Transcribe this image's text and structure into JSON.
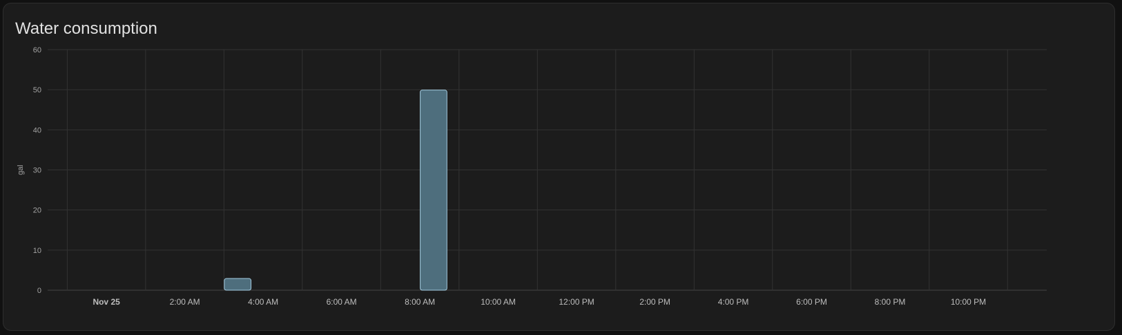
{
  "card": {
    "title": "Water consumption"
  },
  "chart_data": {
    "type": "bar",
    "title": "Water consumption",
    "ylabel": "gal",
    "xlabel": "",
    "ylim": [
      0,
      60
    ],
    "yticks": [
      0,
      10,
      20,
      30,
      40,
      50,
      60
    ],
    "x_range_hours": [
      -1.5,
      24
    ],
    "x_ticks": [
      {
        "hour": 0,
        "label": "Nov 25",
        "bold": true
      },
      {
        "hour": 2,
        "label": "2:00 AM"
      },
      {
        "hour": 4,
        "label": "4:00 AM"
      },
      {
        "hour": 6,
        "label": "6:00 AM"
      },
      {
        "hour": 8,
        "label": "8:00 AM"
      },
      {
        "hour": 10,
        "label": "10:00 AM"
      },
      {
        "hour": 12,
        "label": "12:00 PM"
      },
      {
        "hour": 14,
        "label": "2:00 PM"
      },
      {
        "hour": 16,
        "label": "4:00 PM"
      },
      {
        "hour": 18,
        "label": "6:00 PM"
      },
      {
        "hour": 20,
        "label": "8:00 PM"
      },
      {
        "hour": 22,
        "label": "10:00 PM"
      }
    ],
    "x_gridlines_hours": [
      -1,
      1,
      3,
      5,
      7,
      9,
      11,
      13,
      15,
      17,
      19,
      21,
      23
    ],
    "categories": [
      "3:00 AM",
      "8:00 AM"
    ],
    "bar_start_hours": [
      3,
      8
    ],
    "bar_end_hours": [
      3.7,
      8.7
    ],
    "values": [
      3,
      50
    ],
    "grid": true,
    "legend": "none",
    "colors": {
      "bar_fill": "#4e6e7d",
      "bar_stroke": "#a3cbe0",
      "grid": "#333333",
      "axis": "#454545",
      "tick_text": "#a3a3a3",
      "x_tick_text": "#bdbdbd",
      "title": "#e1e1e1"
    }
  }
}
